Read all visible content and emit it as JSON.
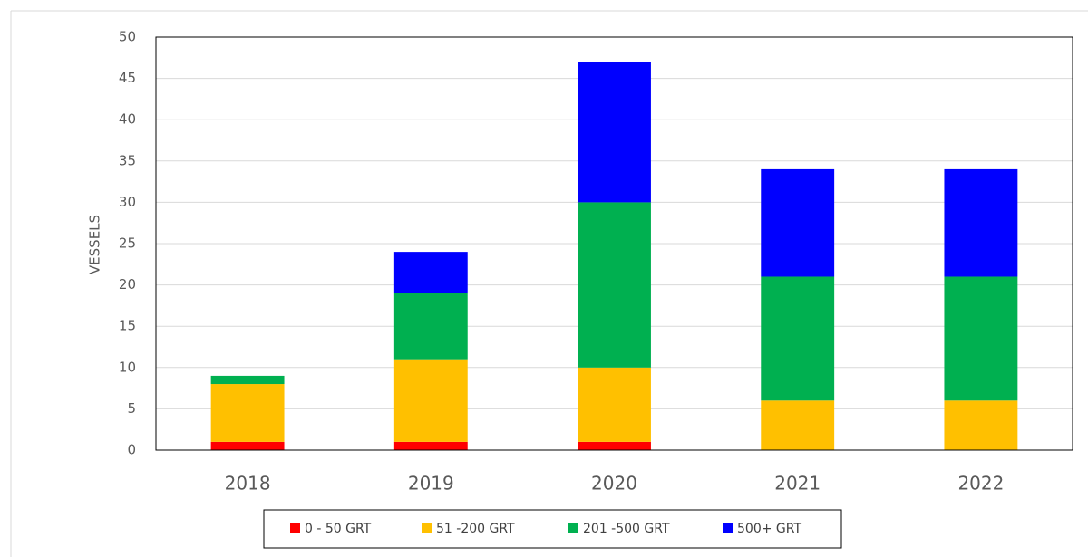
{
  "chart_data": {
    "type": "stacked_bar",
    "y_label": "VESSELS",
    "categories": [
      "2018",
      "2019",
      "2020",
      "2021",
      "2022"
    ],
    "series": [
      {
        "name": "0 - 50 GRT",
        "color": "#ff0000",
        "values": [
          1,
          1,
          1,
          0,
          0
        ]
      },
      {
        "name": "51 -200 GRT",
        "color": "#ffc000",
        "values": [
          7,
          10,
          9,
          6,
          6
        ]
      },
      {
        "name": "201 -500 GRT",
        "color": "#00b050",
        "values": [
          1,
          8,
          20,
          15,
          15
        ]
      },
      {
        "name": "500+ GRT",
        "color": "#0000ff",
        "values": [
          0,
          5,
          17,
          13,
          13
        ]
      }
    ],
    "ylim": [
      0,
      50
    ],
    "yticks": [
      0,
      5,
      10,
      15,
      20,
      25,
      30,
      35,
      40,
      45,
      50
    ],
    "grid": true,
    "legend": "bottom"
  }
}
